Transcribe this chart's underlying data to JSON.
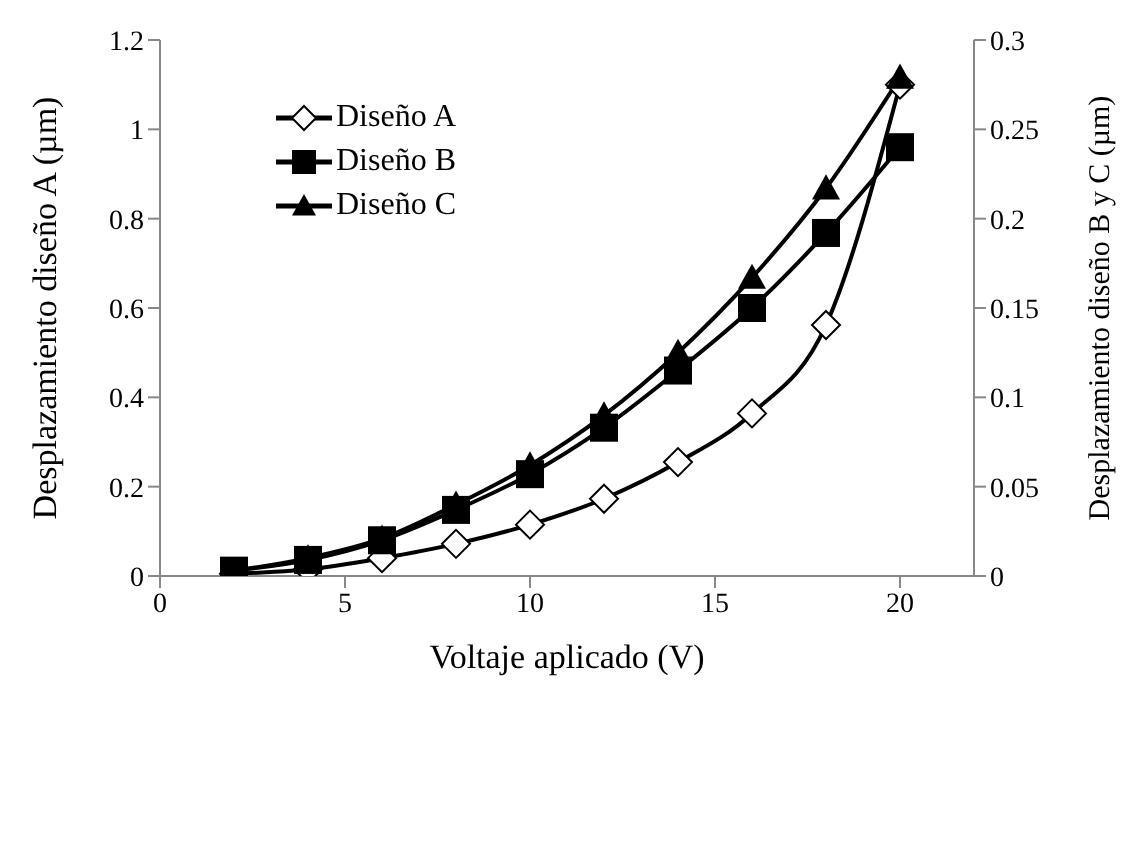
{
  "chart_data": {
    "type": "line",
    "xlabel": "Voltaje aplicado (V)",
    "ylabel": "Desplazamiento diseño A  (µm)",
    "y2label": "Desplazamiento diseño B y C  (µm)",
    "x": [
      2,
      4,
      6,
      8,
      10,
      12,
      14,
      16,
      18,
      20
    ],
    "series": [
      {
        "name": "Diseño A",
        "color": "#000000",
        "marker": "diamond",
        "values": [
          0.005,
          0.015,
          0.04,
          0.072,
          0.115,
          0.173,
          0.255,
          0.364,
          0.562,
          1.1
        ]
      },
      {
        "name": "Diseño B",
        "color": "#000000",
        "marker": "square",
        "axis": "y2",
        "values": [
          0.003,
          0.009,
          0.02,
          0.037,
          0.057,
          0.083,
          0.115,
          0.15,
          0.192,
          0.24
        ]
      },
      {
        "name": "Diseño C",
        "color": "#000000",
        "marker": "triangle",
        "axis": "y2",
        "values": [
          0.003,
          0.01,
          0.021,
          0.04,
          0.062,
          0.09,
          0.125,
          0.167,
          0.217,
          0.279
        ]
      }
    ],
    "xlim": [
      0,
      22
    ],
    "xticks": [
      0,
      5,
      10,
      15,
      20
    ],
    "ylim": [
      0,
      1.2
    ],
    "yticks": [
      0,
      0.2,
      0.4,
      0.6,
      0.8,
      1,
      1.2
    ],
    "y2lim": [
      0,
      0.3
    ],
    "y2ticks": [
      0,
      0.05,
      0.1,
      0.15,
      0.2,
      0.25,
      0.3
    ],
    "legend": "top left",
    "line_style": "solid"
  }
}
